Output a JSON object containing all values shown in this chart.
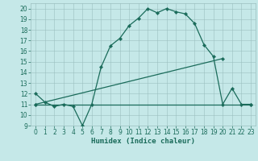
{
  "title": "",
  "xlabel": "Humidex (Indice chaleur)",
  "xlim": [
    -0.5,
    23.5
  ],
  "ylim": [
    9,
    20.5
  ],
  "yticks": [
    9,
    10,
    11,
    12,
    13,
    14,
    15,
    16,
    17,
    18,
    19,
    20
  ],
  "xticks": [
    0,
    1,
    2,
    3,
    4,
    5,
    6,
    7,
    8,
    9,
    10,
    11,
    12,
    13,
    14,
    15,
    16,
    17,
    18,
    19,
    20,
    21,
    22,
    23
  ],
  "background_color": "#c5e8e8",
  "grid_color": "#9bbfbf",
  "line_color": "#1a6b5a",
  "line1_x": [
    0,
    1,
    2,
    3,
    4,
    5,
    6,
    7,
    8,
    9,
    10,
    11,
    12,
    13,
    14,
    15,
    16,
    17,
    18,
    19,
    20,
    21,
    22,
    23
  ],
  "line1_y": [
    12,
    11.2,
    10.8,
    11.0,
    10.8,
    9.0,
    11.0,
    14.5,
    16.5,
    17.2,
    18.4,
    19.1,
    20.0,
    19.6,
    20.0,
    19.7,
    19.5,
    18.6,
    16.6,
    15.5,
    11.0,
    12.5,
    11.0,
    11.0
  ],
  "line2_x": [
    0,
    23
  ],
  "line2_y": [
    11.0,
    11.0
  ],
  "line3_x": [
    0,
    20
  ],
  "line3_y": [
    11.0,
    15.3
  ],
  "fontsize_xlabel": 6.5,
  "fontsize_ticks": 5.5,
  "marker_size": 2.2,
  "line_width": 0.9
}
